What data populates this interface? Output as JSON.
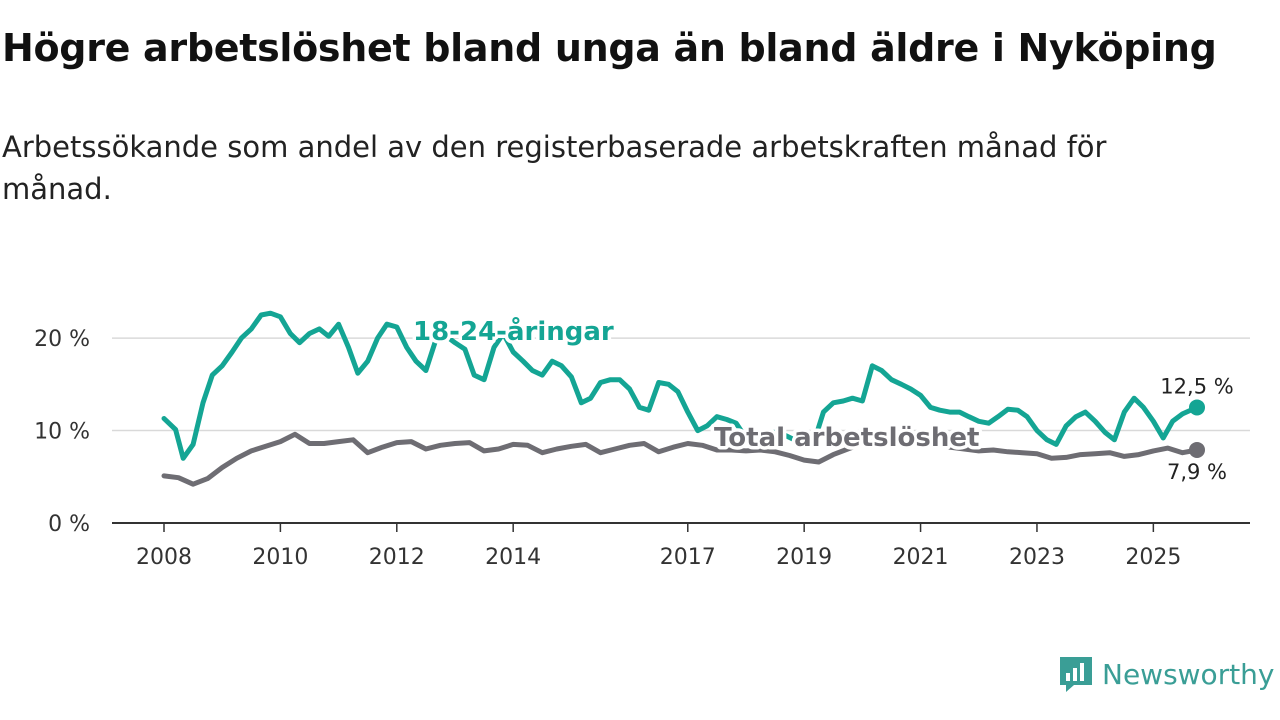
{
  "title": "Högre arbetslöshet bland unga än bland äldre i Nyköping",
  "subtitle": "Arbetssökande som andel av den registerbaserade arbetskraften månad för månad.",
  "brand": "Newsworthy",
  "colors": {
    "youth": "#14a594",
    "total": "#6e6d73",
    "grid": "#d9d9d9",
    "axis": "#333333"
  },
  "chart_data": {
    "type": "line",
    "xlim": [
      2008.0,
      2026.5
    ],
    "ylim": [
      0,
      25
    ],
    "x_ticks": [
      2008,
      2010,
      2012,
      2014,
      2017,
      2019,
      2021,
      2023,
      2025
    ],
    "x_tick_labels": [
      "2008",
      "2010",
      "2012",
      "2014",
      "2017",
      "2019",
      "2021",
      "2023",
      "2025"
    ],
    "y_ticks": [
      0,
      10,
      20
    ],
    "y_tick_labels": [
      "0 %",
      "10 %",
      "20 %"
    ],
    "series": [
      {
        "name": "18-24-åringar",
        "color_key": "youth",
        "label_at": [
          2008.85,
          18.5
        ],
        "end_label": "12,5 %",
        "x": [
          2008.0,
          2008.2,
          2008.33,
          2008.5,
          2008.67,
          2008.83,
          2009.0,
          2009.17,
          2009.33,
          2009.5,
          2009.67,
          2009.83,
          2010.0,
          2010.17,
          2010.33,
          2010.5,
          2010.67,
          2010.83,
          2011.0,
          2011.17,
          2011.33,
          2011.5,
          2011.67,
          2011.83,
          2012.0,
          2012.17,
          2012.33,
          2012.5,
          2012.67,
          2012.83,
          2013.0,
          2013.17,
          2013.33,
          2013.5,
          2013.67,
          2013.83,
          2014.0,
          2014.17,
          2014.33,
          2014.5,
          2014.67,
          2014.83,
          2015.0,
          2015.17,
          2015.33,
          2015.5,
          2015.67,
          2015.83,
          2016.0,
          2016.17,
          2016.33,
          2016.5,
          2016.67,
          2016.83,
          2017.0,
          2017.17,
          2017.33,
          2017.5,
          2017.67,
          2017.83,
          2018.0,
          2018.17,
          2018.33,
          2018.5,
          2018.67,
          2018.83,
          2019.0,
          2019.17,
          2019.33,
          2019.5,
          2019.67,
          2019.83,
          2020.0,
          2020.17,
          2020.33,
          2020.5,
          2020.67,
          2020.83,
          2021.0,
          2021.17,
          2021.33,
          2021.5,
          2021.67,
          2021.83,
          2022.0,
          2022.17,
          2022.33,
          2022.5,
          2022.67,
          2022.83,
          2023.0,
          2023.17,
          2023.33,
          2023.5,
          2023.67,
          2023.83,
          2024.0,
          2024.17,
          2024.33,
          2024.5,
          2024.67,
          2024.83,
          2025.0,
          2025.17,
          2025.33,
          2025.5,
          2025.75
        ],
        "y": [
          11.3,
          10.1,
          7.0,
          8.5,
          13.0,
          16.0,
          17.0,
          18.5,
          20.0,
          21.0,
          22.5,
          22.7,
          22.3,
          20.5,
          19.5,
          20.5,
          21.0,
          20.2,
          21.5,
          19.0,
          16.2,
          17.5,
          20.0,
          21.5,
          21.2,
          19.0,
          17.5,
          16.5,
          19.8,
          20.3,
          19.5,
          18.8,
          16.0,
          15.5,
          19.0,
          20.5,
          18.5,
          17.5,
          16.5,
          16.0,
          17.5,
          17.0,
          15.8,
          13.0,
          13.5,
          15.2,
          15.5,
          15.5,
          14.5,
          12.5,
          12.2,
          15.2,
          15.0,
          14.2,
          12.0,
          10.0,
          10.5,
          11.5,
          11.2,
          10.8,
          9.2,
          9.0,
          9.8,
          9.8,
          9.5,
          9.0,
          8.5,
          8.8,
          12.0,
          13.0,
          13.2,
          13.5,
          13.2,
          17.0,
          16.5,
          15.5,
          15.0,
          14.5,
          13.8,
          12.5,
          12.2,
          12.0,
          12.0,
          11.5,
          11.0,
          10.8,
          11.5,
          12.3,
          12.2,
          11.5,
          10.0,
          9.0,
          8.5,
          10.5,
          11.5,
          12.0,
          11.0,
          9.8,
          9.0,
          12.0,
          13.5,
          12.5,
          11.0,
          9.2,
          11.0,
          11.8,
          12.5
        ]
      },
      {
        "name": "Total arbetslöshet",
        "color_key": "total",
        "label_at": [
          2017.5,
          8.0
        ],
        "end_label": "7,9 %",
        "x": [
          2008.0,
          2008.25,
          2008.5,
          2008.75,
          2009.0,
          2009.25,
          2009.5,
          2009.75,
          2010.0,
          2010.25,
          2010.5,
          2010.75,
          2011.0,
          2011.25,
          2011.5,
          2011.75,
          2012.0,
          2012.25,
          2012.5,
          2012.75,
          2013.0,
          2013.25,
          2013.5,
          2013.75,
          2014.0,
          2014.25,
          2014.5,
          2014.75,
          2015.0,
          2015.25,
          2015.5,
          2015.75,
          2016.0,
          2016.25,
          2016.5,
          2016.75,
          2017.0,
          2017.25,
          2017.5,
          2017.75,
          2018.0,
          2018.25,
          2018.5,
          2018.75,
          2019.0,
          2019.25,
          2019.5,
          2019.75,
          2020.0,
          2020.25,
          2020.5,
          2020.75,
          2021.0,
          2021.25,
          2021.5,
          2021.75,
          2022.0,
          2022.25,
          2022.5,
          2022.75,
          2023.0,
          2023.25,
          2023.5,
          2023.75,
          2024.0,
          2024.25,
          2024.5,
          2024.75,
          2025.0,
          2025.25,
          2025.5,
          2025.75
        ],
        "y": [
          5.1,
          4.9,
          4.2,
          4.8,
          6.0,
          7.0,
          7.8,
          8.3,
          8.8,
          9.6,
          8.6,
          8.6,
          8.8,
          9.0,
          7.6,
          8.2,
          8.7,
          8.8,
          8.0,
          8.4,
          8.6,
          8.7,
          7.8,
          8.0,
          8.5,
          8.4,
          7.6,
          8.0,
          8.3,
          8.5,
          7.6,
          8.0,
          8.4,
          8.6,
          7.7,
          8.2,
          8.6,
          8.4,
          7.9,
          7.9,
          7.8,
          7.9,
          7.7,
          7.3,
          6.8,
          6.6,
          7.4,
          8.0,
          8.6,
          9.0,
          8.9,
          8.5,
          8.6,
          8.7,
          8.2,
          8.0,
          7.8,
          7.9,
          7.7,
          7.6,
          7.5,
          7.0,
          7.1,
          7.4,
          7.5,
          7.6,
          7.2,
          7.4,
          7.8,
          8.1,
          7.6,
          7.9
        ]
      }
    ]
  }
}
